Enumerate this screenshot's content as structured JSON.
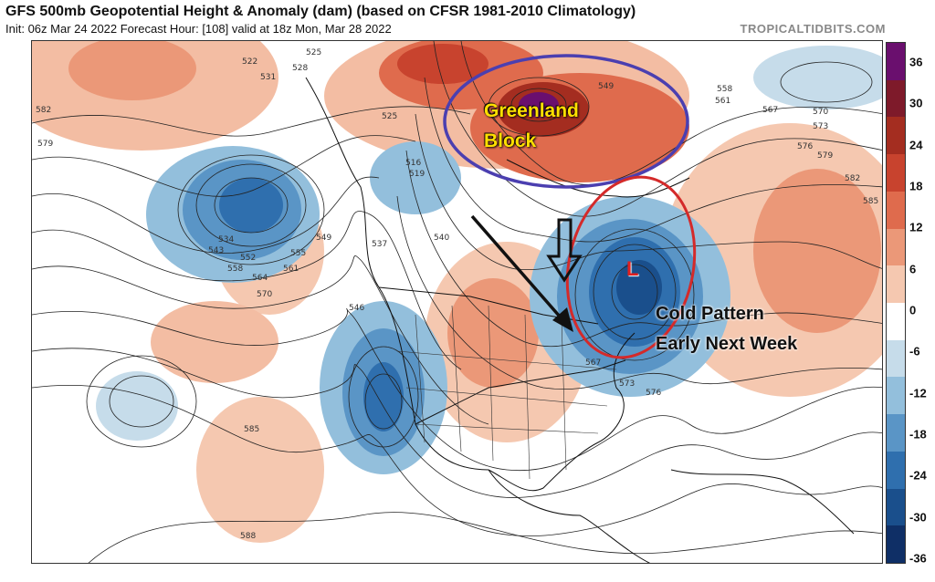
{
  "header": {
    "title": "GFS 500mb Geopotential Height & Anomaly (dam) (based on CFSR 1981-2010 Climatology)",
    "subtitle": "Init: 06z Mar 24 2022   Forecast Hour: [108]   valid at 18z Mon, Mar 28 2022",
    "site": "TROPICALTIDBITS.COM"
  },
  "colorbar": {
    "ticks": [
      "36",
      "30",
      "24",
      "18",
      "12",
      "6",
      "0",
      "-6",
      "-12",
      "-18",
      "-24",
      "-30",
      "-36"
    ],
    "colors": [
      "#6a0f6e",
      "#7e1a2a",
      "#a42d20",
      "#c8432e",
      "#df6b4d",
      "#eb9878",
      "#f5c8b0",
      "#ffffff",
      "#c6dcea",
      "#93bfdc",
      "#5a95c6",
      "#2f6fae",
      "#1a4f8c",
      "#0f2f66"
    ]
  },
  "annotations": {
    "greenland_line1": "Greenland",
    "greenland_line2": "Block",
    "cold_line1": "Cold Pattern",
    "cold_line2": "Early Next Week",
    "low_marker": "L"
  },
  "height_labels": [
    "525",
    "528",
    "522",
    "531",
    "582",
    "579",
    "534",
    "543",
    "552",
    "558",
    "564",
    "570",
    "555",
    "549",
    "561",
    "537",
    "546",
    "516",
    "519",
    "540",
    "567",
    "573",
    "576",
    "585",
    "588",
    "525",
    "549",
    "558",
    "561",
    "567",
    "570",
    "573",
    "576",
    "579",
    "582",
    "585"
  ]
}
